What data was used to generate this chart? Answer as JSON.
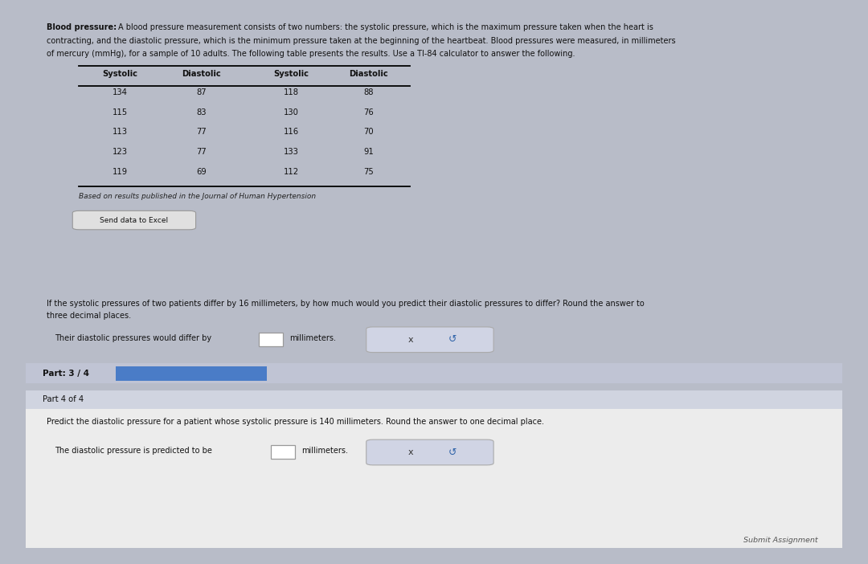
{
  "title_bold": "Blood pressure:",
  "title_line1": "A blood pressure measurement consists of two numbers: the systolic pressure, which is the maximum pressure taken when the heart is",
  "title_line2": "contracting, and the diastolic pressure, which is the minimum pressure taken at the beginning of the heartbeat. Blood pressures were measured, in millimeters",
  "title_line3": "of mercury (mmHg), for a sample of 10 adults. The following table presents the results. Use a TI-84 calculator to answer the following.",
  "table_headers": [
    "Systolic",
    "Diastolic",
    "Systolic",
    "Diastolic"
  ],
  "table_data": [
    [
      134,
      87,
      118,
      88
    ],
    [
      115,
      83,
      130,
      76
    ],
    [
      113,
      77,
      116,
      70
    ],
    [
      123,
      77,
      133,
      91
    ],
    [
      119,
      69,
      112,
      75
    ]
  ],
  "citation": "Based on results published in the Journal of Human Hypertension",
  "send_excel_label": "Send data to Excel",
  "q3_line1": "If the systolic pressures of two patients differ by 16 millimeters, by how much would you predict their diastolic pressures to differ? Round the answer to",
  "q3_line2": "three decimal places.",
  "q3_answer_prefix": "Their diastolic pressures would differ by",
  "q3_answer_suffix": "millimeters.",
  "part_label": "Part: 3 / 4",
  "part4_label": "Part 4 of 4",
  "q4_text": "Predict the diastolic pressure for a patient whose systolic pressure is 140 millimeters. Round the answer to one decimal place.",
  "q4_answer_prefix": "The diastolic pressure is predicted to be",
  "q4_answer_suffix": "millimeters.",
  "submit_label": "Submit Assignment",
  "bg_outer": "#b8bcc8",
  "bg_top_panel": "#efefef",
  "bg_bottom_panel": "#e8eaf2",
  "bg_part_bar": "#c0c4d4",
  "bg_part4_header": "#d0d4e0",
  "bg_part4_content": "#ececec",
  "blue_bar": "#4a7cc7",
  "btn_bg": "#e0e0e0",
  "xbtn_bg": "#d0d4e4",
  "text_color": "#111111",
  "text_italic_color": "#222222"
}
